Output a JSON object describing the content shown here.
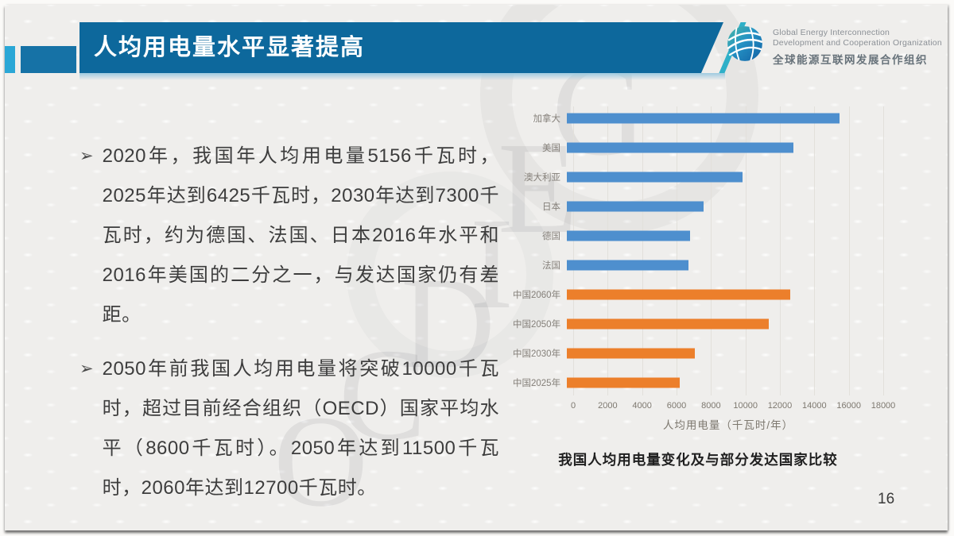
{
  "slide": {
    "title": "人均用电量水平显著提高",
    "page_number": "16",
    "watermark_letters": [
      "G",
      "E",
      "I",
      "D",
      "C",
      "O"
    ]
  },
  "logo": {
    "icon": "globe-icon",
    "name_en_line1": "Global Energy Interconnection",
    "name_en_line2": "Development and Cooperation Organization",
    "name_cn": "全球能源互联网发展合作组织"
  },
  "bullets": [
    {
      "marker": "➢",
      "text": "2020年，我国年人均用电量5156千瓦时，2025年达到6425千瓦时，2030年达到7300千瓦时，约为德国、法国、日本2016年水平和2016年美国的二分之一，与发达国家仍有差距。"
    },
    {
      "marker": "➢",
      "text": "2050年前我国人均用电量将突破10000千瓦时，超过目前经合组织（OECD）国家平均水平（8600千瓦时）。2050年达到11500千瓦时，2060年达到12700千瓦时。"
    }
  ],
  "chart_data": {
    "type": "bar",
    "orientation": "horizontal",
    "title": "我国人均用电量变化及与部分发达国家比较",
    "xlabel": "人均用电量（千瓦时/年）",
    "xlim": [
      0,
      18000
    ],
    "xticks": [
      0,
      2000,
      4000,
      6000,
      8000,
      10000,
      12000,
      14000,
      16000,
      18000
    ],
    "grid": true,
    "legend": "none",
    "categories": [
      "加拿大",
      "美国",
      "澳大利亚",
      "日本",
      "德国",
      "法国",
      "中国2060年",
      "中国2050年",
      "中国2030年",
      "中国2025年"
    ],
    "values": [
      15500,
      12900,
      10000,
      7800,
      7000,
      6900,
      12700,
      11500,
      7300,
      6425
    ],
    "groups": [
      "developed",
      "developed",
      "developed",
      "developed",
      "developed",
      "developed",
      "china",
      "china",
      "china",
      "china"
    ],
    "colors": {
      "developed": "#4e8fce",
      "china": "#ec7f2b"
    }
  },
  "theme_colors": {
    "title_bar_blue": "#0d689c",
    "accent_cyan": "#2aa7d6",
    "accent_blue": "#1672a6",
    "bar_blue": "#4e8fce",
    "bar_orange": "#ec7f2b"
  }
}
